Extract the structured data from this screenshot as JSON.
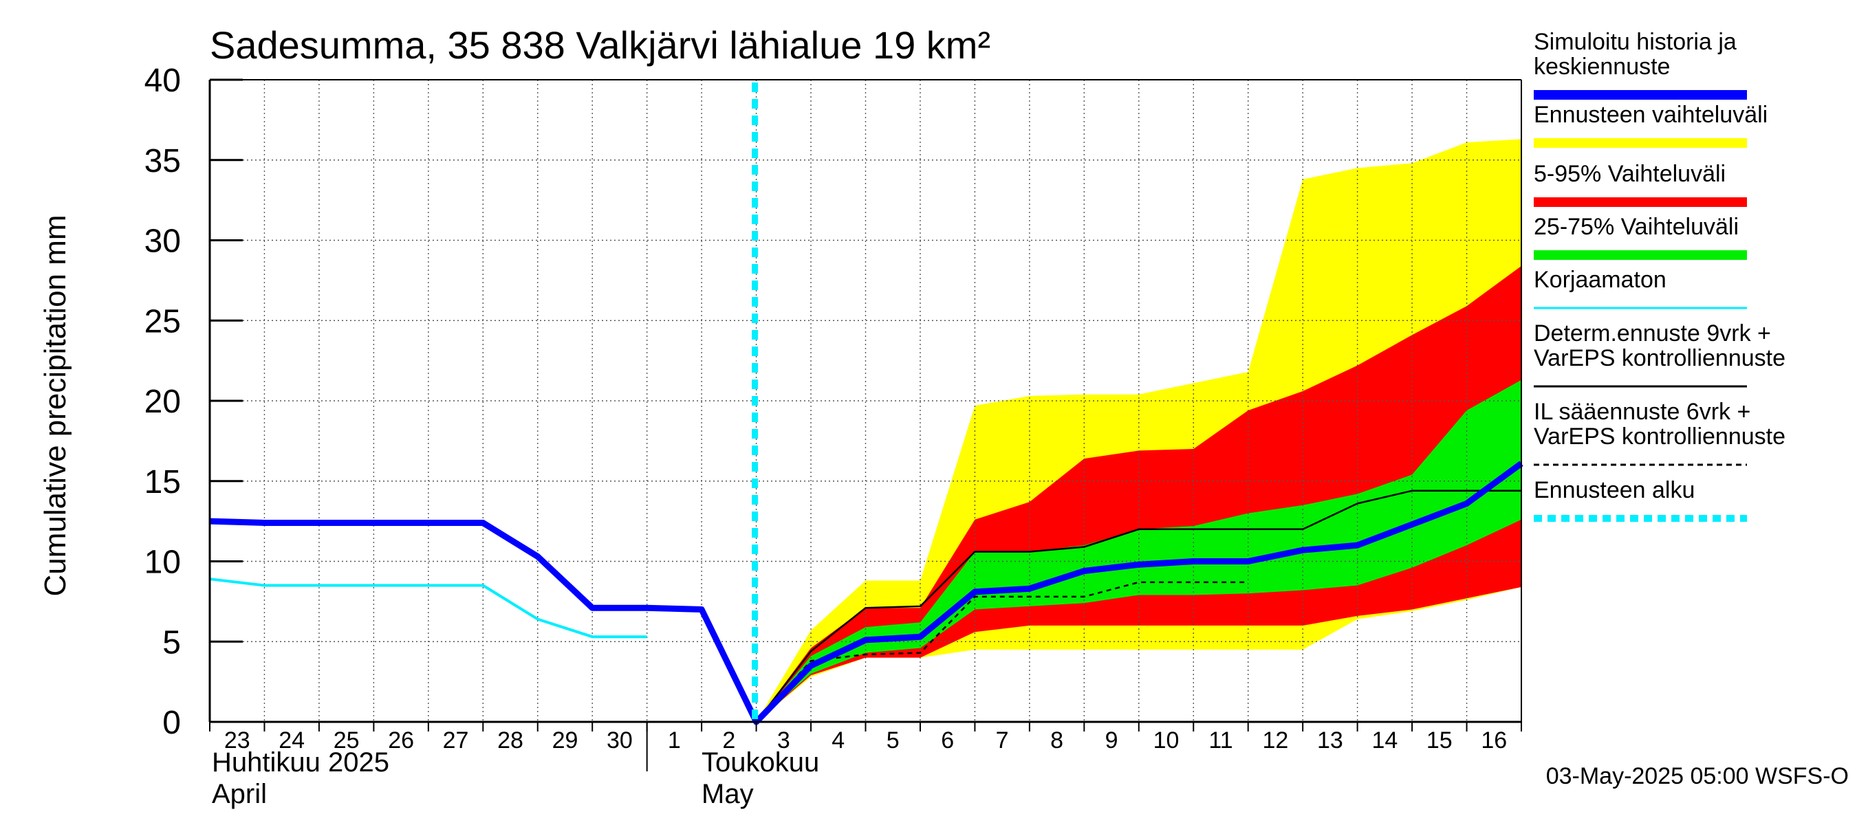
{
  "chart_data": {
    "type": "area",
    "title": "Sadesumma, 35 838 Valkjärvi lähialue 19 km²",
    "ylabel": "Cumulative precipitation   mm",
    "ylim": [
      0,
      40
    ],
    "yticks": [
      "0",
      "5",
      "10",
      "15",
      "20",
      "25",
      "30",
      "35",
      "40"
    ],
    "x_days": [
      "23",
      "24",
      "25",
      "26",
      "27",
      "28",
      "29",
      "30",
      "1",
      "2",
      "3",
      "4",
      "5",
      "6",
      "7",
      "8",
      "9",
      "10",
      "11",
      "12",
      "13",
      "14",
      "15",
      "16"
    ],
    "month_labels": {
      "april_fi": "Huhtikuu  2025",
      "april_en": "April",
      "may_fi": "Toukokuu",
      "may_en": "May"
    },
    "timestamp": "03-May-2025 05:00 WSFS-O",
    "grid": true,
    "forecast_start": "3 May 2025",
    "colors": {
      "history": "#0000ff",
      "range_full": "#ffff00",
      "range_5_95": "#ff0000",
      "range_25_75": "#00ee00",
      "uncorrected": "#00eeff",
      "determ": "#000000",
      "il": "#000000",
      "forecast_start": "#00eeff"
    },
    "series": [
      {
        "name": "Simuloitu historia ja keskiennuste",
        "points": [
          [
            "Apr 23 00",
            12.5
          ],
          [
            "Apr 24",
            12.4
          ],
          [
            "Apr 28",
            12.4
          ],
          [
            "Apr 29",
            10.3
          ],
          [
            "Apr 30",
            7.1
          ],
          [
            "May 1",
            7.1
          ],
          [
            "May 2",
            7.0
          ],
          [
            "May 3",
            0.0
          ],
          [
            "May 4",
            3.5
          ],
          [
            "May 5",
            5.1
          ],
          [
            "May 6",
            5.3
          ],
          [
            "May 7",
            8.1
          ],
          [
            "May 8",
            8.3
          ],
          [
            "May 9",
            9.4
          ],
          [
            "May 10",
            9.8
          ],
          [
            "May 11",
            10.0
          ],
          [
            "May 12",
            10.0
          ],
          [
            "May 13",
            10.7
          ],
          [
            "May 14",
            11.0
          ],
          [
            "May 15",
            12.3
          ],
          [
            "May 16",
            13.6
          ],
          [
            "May 16 24",
            16.1
          ]
        ]
      },
      {
        "name": "Korjaamaton",
        "points": [
          [
            "Apr 23 00",
            8.9
          ],
          [
            "Apr 24",
            8.5
          ],
          [
            "Apr 28",
            8.5
          ],
          [
            "Apr 29",
            6.4
          ],
          [
            "Apr 30",
            5.3
          ],
          [
            "May 1",
            5.3
          ]
        ]
      },
      {
        "name": "Determ.ennuste 9vrk + VarEPS kontrolliennuste",
        "points": [
          [
            "May 3",
            0.0
          ],
          [
            "May 4",
            4.4
          ],
          [
            "May 5",
            7.1
          ],
          [
            "May 6",
            7.2
          ],
          [
            "May 7",
            10.6
          ],
          [
            "May 8",
            10.6
          ],
          [
            "May 9",
            10.9
          ],
          [
            "May 10",
            12.0
          ],
          [
            "May 11",
            12.0
          ],
          [
            "May 12",
            12.0
          ],
          [
            "May 13",
            12.0
          ],
          [
            "May 14",
            13.6
          ],
          [
            "May 15",
            14.4
          ],
          [
            "May 16 24",
            14.4
          ]
        ]
      },
      {
        "name": "IL sääennuste 6vrk + VarEPS kontrolliennuste",
        "points": [
          [
            "May 3",
            0.0
          ],
          [
            "May 4",
            3.8
          ],
          [
            "May 5",
            4.2
          ],
          [
            "May 6",
            4.3
          ],
          [
            "May 7",
            7.8
          ],
          [
            "May 8",
            7.8
          ],
          [
            "May 9",
            7.8
          ],
          [
            "May 10",
            8.7
          ],
          [
            "May 11",
            8.7
          ],
          [
            "May 12",
            8.7
          ]
        ]
      }
    ],
    "bands": [
      {
        "name": "Ennusteen vaihteluväli",
        "x": [
          "May 3",
          "May 4",
          "May 5",
          "May 6",
          "May 7",
          "May 8",
          "May 9",
          "May 10",
          "May 11",
          "May 12",
          "May 13",
          "May 14",
          "May 15",
          "May 16",
          "May 16 24"
        ],
        "upper": [
          0.0,
          5.7,
          8.8,
          8.8,
          19.7,
          20.3,
          20.4,
          20.4,
          21.1,
          21.8,
          33.8,
          34.5,
          34.8,
          36.1,
          36.3
        ],
        "lower": [
          0.0,
          2.8,
          4.0,
          4.0,
          4.5,
          4.5,
          4.5,
          4.5,
          4.5,
          4.5,
          4.5,
          6.4,
          6.9,
          7.6,
          8.4
        ]
      },
      {
        "name": "5-95% Vaihteluväli",
        "x": [
          "May 3",
          "May 4",
          "May 5",
          "May 6",
          "May 7",
          "May 8",
          "May 9",
          "May 10",
          "May 11",
          "May 12",
          "May 13",
          "May 14",
          "May 15",
          "May 16",
          "May 16 24"
        ],
        "upper": [
          0.0,
          4.6,
          7.1,
          7.1,
          12.6,
          13.7,
          16.4,
          16.9,
          17.0,
          19.4,
          20.6,
          22.2,
          24.1,
          25.9,
          28.4
        ],
        "lower": [
          0.0,
          2.9,
          4.0,
          4.0,
          5.6,
          6.0,
          6.0,
          6.0,
          6.0,
          6.0,
          6.0,
          6.6,
          7.0,
          7.7,
          8.4
        ]
      },
      {
        "name": "25-75% Vaihteluväli",
        "x": [
          "May 3",
          "May 4",
          "May 5",
          "May 6",
          "May 7",
          "May 8",
          "May 9",
          "May 10",
          "May 11",
          "May 12",
          "May 13",
          "May 14",
          "May 15",
          "May 16",
          "May 16 24"
        ],
        "upper": [
          0.0,
          4.1,
          5.9,
          6.2,
          10.6,
          10.6,
          11.0,
          12.0,
          12.2,
          13.0,
          13.5,
          14.2,
          15.4,
          19.4,
          21.3
        ],
        "lower": [
          0.0,
          3.0,
          4.3,
          4.6,
          7.0,
          7.2,
          7.4,
          7.9,
          7.9,
          8.0,
          8.2,
          8.5,
          9.6,
          11.0,
          12.6
        ]
      }
    ],
    "legend": [
      {
        "label_lines": [
          "Simuloitu historia ja",
          "keskiennuste"
        ],
        "style": "thick",
        "color": "#0000ff"
      },
      {
        "label_lines": [
          "Ennusteen vaihteluväli"
        ],
        "style": "thick",
        "color": "#ffff00"
      },
      {
        "label_lines": [
          "5-95% Vaihteluväli"
        ],
        "style": "thick",
        "color": "#ff0000"
      },
      {
        "label_lines": [
          "25-75% Vaihteluväli"
        ],
        "style": "thick",
        "color": "#00ee00"
      },
      {
        "label_lines": [
          "Korjaamaton"
        ],
        "style": "thin",
        "color": "#00eeff"
      },
      {
        "label_lines": [
          "Determ.ennuste 9vrk +",
          "VarEPS kontrolliennuste"
        ],
        "style": "thin",
        "color": "#000000"
      },
      {
        "label_lines": [
          "IL sääennuste 6vrk  +",
          "  VarEPS kontrolliennuste"
        ],
        "style": "dashed",
        "color": "#000000"
      },
      {
        "label_lines": [
          "Ennusteen alku"
        ],
        "style": "thickdashed",
        "color": "#00eeff"
      }
    ],
    "legend_placement": "right"
  }
}
